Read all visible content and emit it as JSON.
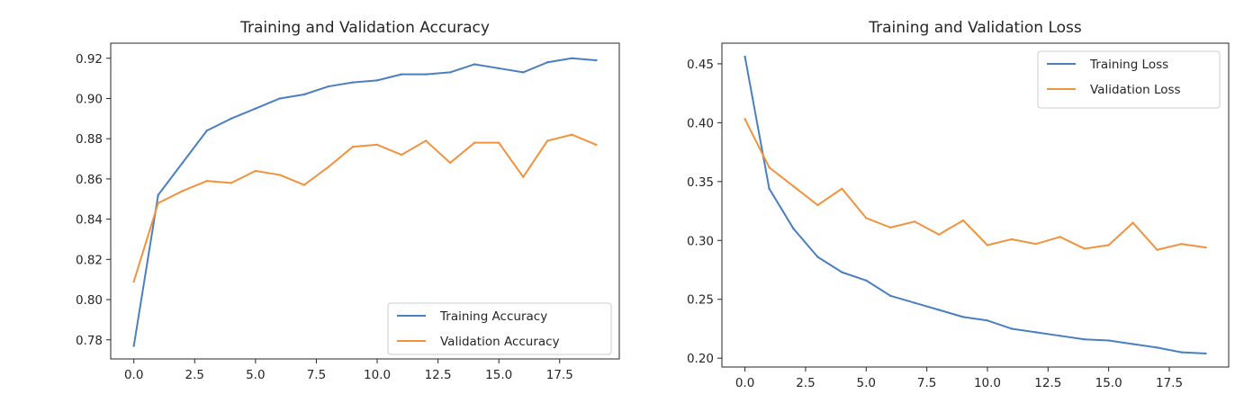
{
  "colors": {
    "training": "#4c7fbf",
    "validation": "#f0923e",
    "axis": "#262626",
    "legend_border": "#cccccc"
  },
  "chart_data": [
    {
      "type": "line",
      "title": "Training and Validation Accuracy",
      "xlabel": "",
      "ylabel": "",
      "xlim": [
        -0.95,
        19.95
      ],
      "ylim": [
        0.7705,
        0.9275
      ],
      "xticks": [
        0,
        2.5,
        5,
        7.5,
        10,
        12.5,
        15,
        17.5
      ],
      "xtick_labels": [
        "0.0",
        "2.5",
        "5.0",
        "7.5",
        "10.0",
        "12.5",
        "15.0",
        "17.5"
      ],
      "yticks": [
        0.78,
        0.8,
        0.82,
        0.84,
        0.86,
        0.88,
        0.9,
        0.92
      ],
      "ytick_labels": [
        "0.78",
        "0.80",
        "0.82",
        "0.84",
        "0.86",
        "0.88",
        "0.90",
        "0.92"
      ],
      "grid": false,
      "legend": "lower-right",
      "x": [
        0,
        1,
        2,
        3,
        4,
        5,
        6,
        7,
        8,
        9,
        10,
        11,
        12,
        13,
        14,
        15,
        16,
        17,
        18,
        19
      ],
      "series": [
        {
          "name": "Training Accuracy",
          "color": "#4c7fbf",
          "values": [
            0.777,
            0.852,
            0.868,
            0.884,
            0.89,
            0.895,
            0.9,
            0.902,
            0.906,
            0.908,
            0.909,
            0.912,
            0.912,
            0.913,
            0.917,
            0.915,
            0.913,
            0.918,
            0.92,
            0.919
          ]
        },
        {
          "name": "Validation Accuracy",
          "color": "#f0923e",
          "values": [
            0.809,
            0.848,
            0.854,
            0.859,
            0.858,
            0.864,
            0.862,
            0.857,
            0.866,
            0.876,
            0.877,
            0.872,
            0.879,
            0.868,
            0.878,
            0.878,
            0.861,
            0.879,
            0.882,
            0.877
          ]
        }
      ]
    },
    {
      "type": "line",
      "title": "Training and Validation Loss",
      "xlabel": "",
      "ylabel": "",
      "xlim": [
        -0.95,
        19.95
      ],
      "ylim": [
        0.1925,
        0.4675
      ],
      "xticks": [
        0,
        2.5,
        5,
        7.5,
        10,
        12.5,
        15,
        17.5
      ],
      "xtick_labels": [
        "0.0",
        "2.5",
        "5.0",
        "7.5",
        "10.0",
        "12.5",
        "15.0",
        "17.5"
      ],
      "yticks": [
        0.2,
        0.25,
        0.3,
        0.35,
        0.4,
        0.45
      ],
      "ytick_labels": [
        "0.20",
        "0.25",
        "0.30",
        "0.35",
        "0.40",
        "0.45"
      ],
      "grid": false,
      "legend": "upper-right",
      "x": [
        0,
        1,
        2,
        3,
        4,
        5,
        6,
        7,
        8,
        9,
        10,
        11,
        12,
        13,
        14,
        15,
        16,
        17,
        18,
        19
      ],
      "series": [
        {
          "name": "Training Loss",
          "color": "#4c7fbf",
          "values": [
            0.456,
            0.344,
            0.31,
            0.286,
            0.273,
            0.266,
            0.253,
            0.247,
            0.241,
            0.235,
            0.232,
            0.225,
            0.222,
            0.219,
            0.216,
            0.215,
            0.212,
            0.209,
            0.205,
            0.204
          ]
        },
        {
          "name": "Validation Loss",
          "color": "#f0923e",
          "values": [
            0.403,
            0.362,
            0.346,
            0.33,
            0.344,
            0.319,
            0.311,
            0.316,
            0.305,
            0.317,
            0.296,
            0.301,
            0.297,
            0.303,
            0.293,
            0.296,
            0.315,
            0.292,
            0.297,
            0.294
          ]
        }
      ]
    }
  ]
}
